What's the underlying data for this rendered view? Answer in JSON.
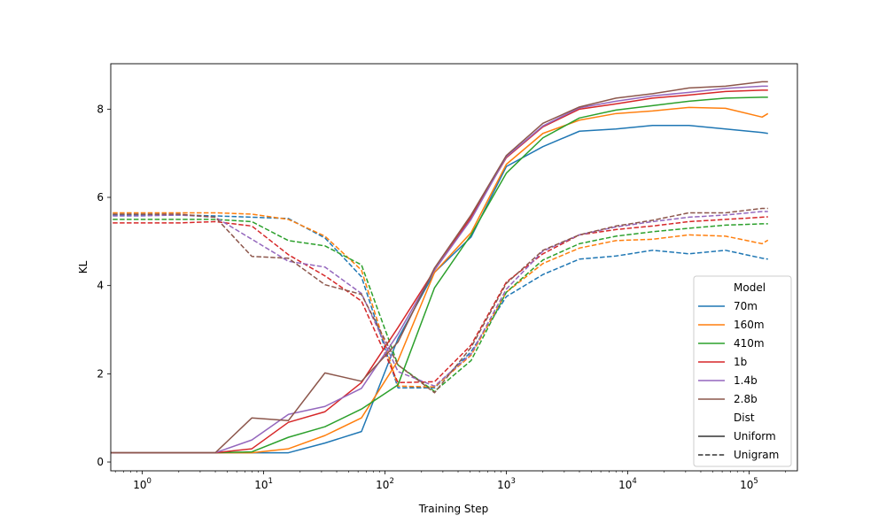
{
  "chart_data": {
    "type": "line",
    "xlabel": "Training Step",
    "ylabel": "KL",
    "xscale": "log",
    "xlim": [
      0.55,
      250000
    ],
    "ylim": [
      -0.2,
      9.03
    ],
    "x_ticks": [
      {
        "value": 1,
        "base": "10",
        "exp": "0"
      },
      {
        "value": 10,
        "base": "10",
        "exp": "1"
      },
      {
        "value": 100,
        "base": "10",
        "exp": "2"
      },
      {
        "value": 1000,
        "base": "10",
        "exp": "3"
      },
      {
        "value": 10000,
        "base": "10",
        "exp": "4"
      },
      {
        "value": 100000,
        "base": "10",
        "exp": "5"
      }
    ],
    "y_ticks": [
      {
        "value": 0,
        "label": "0"
      },
      {
        "value": 2,
        "label": "2"
      },
      {
        "value": 4,
        "label": "4"
      },
      {
        "value": 6,
        "label": "6"
      },
      {
        "value": 8,
        "label": "8"
      }
    ],
    "legend": {
      "position": "lower-right",
      "model_title": "Model",
      "dist_title": "Dist",
      "dist_entries": [
        {
          "label": "Uniform",
          "dash": "solid"
        },
        {
          "label": "Unigram",
          "dash": "dashed"
        }
      ]
    },
    "x": [
      0.5,
      1,
      2,
      4,
      8,
      16,
      32,
      64,
      128,
      256,
      512,
      1000,
      2000,
      4000,
      8000,
      16000,
      32000,
      64000,
      128000,
      143000
    ],
    "series": [
      {
        "name": "70m",
        "color": "#1f77b4",
        "uniform": [
          0.21,
          0.21,
          0.21,
          0.21,
          0.21,
          0.21,
          0.43,
          0.69,
          2.8,
          4.3,
          5.1,
          6.7,
          7.15,
          7.5,
          7.55,
          7.63,
          7.63,
          7.55,
          7.47,
          7.45
        ],
        "unigram": [
          5.6,
          5.6,
          5.6,
          5.58,
          5.55,
          5.52,
          5.08,
          4.2,
          1.68,
          1.68,
          2.5,
          3.75,
          4.25,
          4.6,
          4.67,
          4.8,
          4.72,
          4.8,
          4.62,
          4.6
        ]
      },
      {
        "name": "160m",
        "color": "#ff7f0e",
        "uniform": [
          0.21,
          0.21,
          0.21,
          0.21,
          0.21,
          0.3,
          0.6,
          1.0,
          2.3,
          4.3,
          5.2,
          6.75,
          7.45,
          7.75,
          7.9,
          7.96,
          8.04,
          8.02,
          7.82,
          7.9
        ],
        "unigram": [
          5.65,
          5.65,
          5.65,
          5.65,
          5.62,
          5.5,
          5.12,
          4.35,
          1.72,
          1.7,
          2.42,
          3.85,
          4.5,
          4.85,
          5.02,
          5.05,
          5.15,
          5.12,
          4.95,
          5.03
        ]
      },
      {
        "name": "410m",
        "color": "#2ca02c",
        "uniform": [
          0.21,
          0.21,
          0.21,
          0.21,
          0.23,
          0.56,
          0.8,
          1.2,
          1.75,
          3.95,
          5.15,
          6.55,
          7.35,
          7.8,
          7.98,
          8.08,
          8.18,
          8.25,
          8.27,
          8.27
        ],
        "unigram": [
          5.5,
          5.5,
          5.5,
          5.5,
          5.45,
          5.02,
          4.9,
          4.47,
          2.2,
          1.6,
          2.3,
          3.85,
          4.58,
          4.95,
          5.12,
          5.22,
          5.3,
          5.37,
          5.4,
          5.4
        ]
      },
      {
        "name": "1b",
        "color": "#d62728",
        "uniform": [
          0.21,
          0.21,
          0.21,
          0.21,
          0.3,
          0.9,
          1.14,
          1.8,
          3.05,
          4.35,
          5.55,
          6.9,
          7.6,
          8.0,
          8.12,
          8.25,
          8.32,
          8.4,
          8.43,
          8.43
        ],
        "unigram": [
          5.42,
          5.42,
          5.42,
          5.45,
          5.35,
          4.7,
          4.22,
          3.65,
          1.8,
          1.82,
          2.65,
          4.08,
          4.72,
          5.15,
          5.27,
          5.35,
          5.45,
          5.5,
          5.55,
          5.56
        ]
      },
      {
        "name": "1.4b",
        "color": "#9467bd",
        "uniform": [
          0.21,
          0.21,
          0.21,
          0.21,
          0.5,
          1.08,
          1.26,
          1.67,
          2.9,
          4.35,
          5.5,
          6.92,
          7.62,
          8.03,
          8.18,
          8.3,
          8.38,
          8.47,
          8.52,
          8.52
        ],
        "unigram": [
          5.58,
          5.58,
          5.6,
          5.55,
          5.05,
          4.55,
          4.42,
          3.82,
          2.05,
          1.72,
          2.45,
          3.92,
          4.78,
          5.15,
          5.33,
          5.45,
          5.55,
          5.6,
          5.68,
          5.68
        ]
      },
      {
        "name": "2.8b",
        "color": "#8c564b",
        "uniform": [
          0.21,
          0.21,
          0.21,
          0.21,
          1.0,
          0.94,
          2.02,
          1.83,
          2.72,
          4.4,
          5.6,
          6.95,
          7.68,
          8.05,
          8.25,
          8.35,
          8.48,
          8.52,
          8.62,
          8.62
        ],
        "unigram": [
          5.62,
          5.62,
          5.62,
          5.55,
          4.66,
          4.62,
          4.02,
          3.8,
          2.2,
          1.57,
          2.6,
          4.05,
          4.8,
          5.15,
          5.35,
          5.48,
          5.65,
          5.65,
          5.75,
          5.75
        ]
      }
    ]
  }
}
